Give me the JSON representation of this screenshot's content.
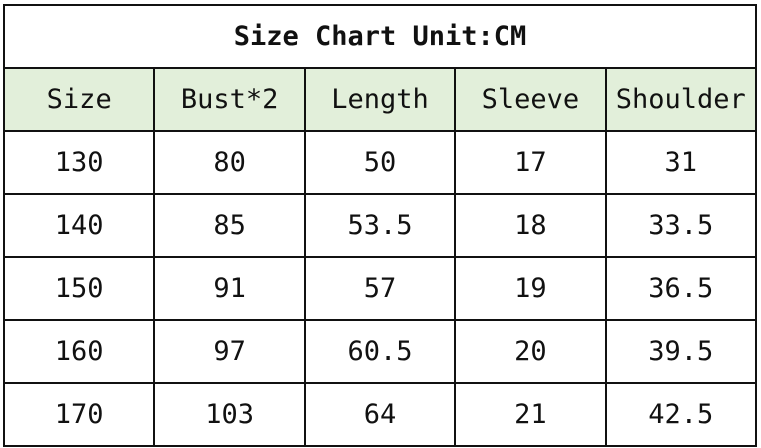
{
  "title": "Size Chart Unit:CM",
  "header_bg": "#e2efda",
  "columns": [
    "Size",
    "Bust*2",
    "Length",
    "Sleeve",
    "Shoulder"
  ],
  "rows": [
    [
      "130",
      "80",
      "50",
      "17",
      "31"
    ],
    [
      "140",
      "85",
      "53.5",
      "18",
      "33.5"
    ],
    [
      "150",
      "91",
      "57",
      "19",
      "36.5"
    ],
    [
      "160",
      "97",
      "60.5",
      "20",
      "39.5"
    ],
    [
      "170",
      "103",
      "64",
      "21",
      "42.5"
    ]
  ]
}
